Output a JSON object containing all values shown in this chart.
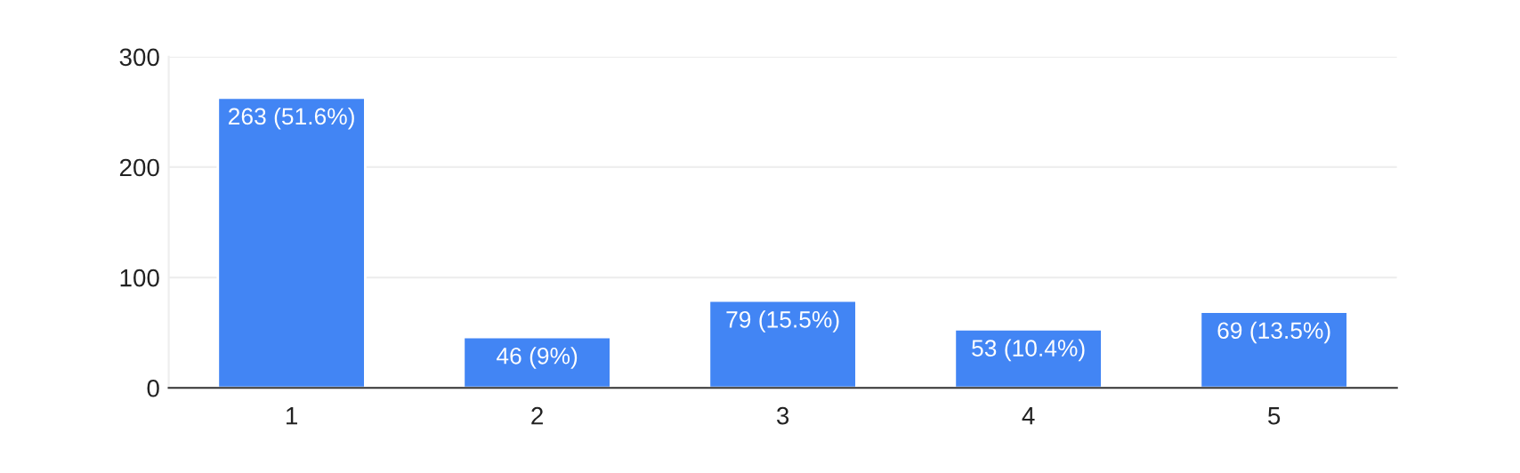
{
  "chart_data": {
    "type": "bar",
    "categories": [
      "1",
      "2",
      "3",
      "4",
      "5"
    ],
    "values": [
      263,
      46,
      79,
      53,
      69
    ],
    "value_labels": [
      "263 (51.6%)",
      "46 (9%)",
      "79 (15.5%)",
      "53 (10.4%)",
      "69 (13.5%)"
    ],
    "color": "#4285f4",
    "ylim": [
      0,
      300
    ],
    "yticks": [
      0,
      100,
      200,
      300
    ],
    "grid": "y"
  }
}
